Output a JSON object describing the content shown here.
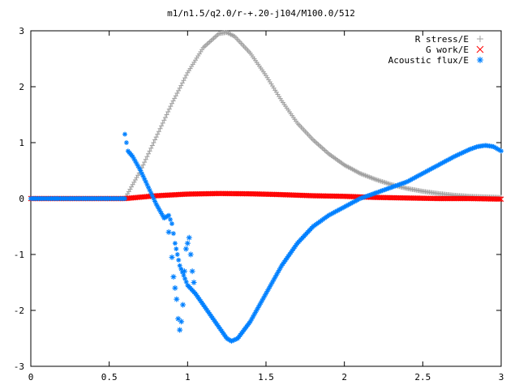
{
  "chart_data": {
    "type": "scatter",
    "title": "m1/n1.5/q2.0/r-+.20-j104/M100.0/512",
    "xlabel": "",
    "ylabel": "",
    "xlim": [
      0,
      3
    ],
    "ylim": [
      -3,
      3
    ],
    "xticks": [
      "0",
      "0.5",
      "1",
      "1.5",
      "2",
      "2.5",
      "3"
    ],
    "yticks": [
      "-3",
      "-2",
      "-1",
      "0",
      "1",
      "2",
      "3"
    ],
    "grid": false,
    "legend": "top-right",
    "series": [
      {
        "name": "R stress/E",
        "marker": "plus",
        "color": "#a0a0a0",
        "x": [
          0.6,
          0.7,
          0.8,
          0.9,
          1.0,
          1.1,
          1.2,
          1.25,
          1.3,
          1.4,
          1.5,
          1.6,
          1.7,
          1.8,
          1.9,
          2.0,
          2.1,
          2.2,
          2.3,
          2.4,
          2.5,
          2.6,
          2.7,
          2.8,
          2.9,
          3.0
        ],
        "y": [
          0.0,
          0.5,
          1.1,
          1.7,
          2.25,
          2.7,
          2.95,
          2.97,
          2.9,
          2.6,
          2.2,
          1.75,
          1.35,
          1.05,
          0.8,
          0.6,
          0.45,
          0.34,
          0.25,
          0.18,
          0.13,
          0.09,
          0.06,
          0.04,
          0.03,
          0.02
        ]
      },
      {
        "name": "G work/E",
        "marker": "cross",
        "color": "#ff0000",
        "x": [
          0.0,
          0.6,
          0.8,
          1.0,
          1.2,
          1.4,
          1.6,
          1.8,
          2.0,
          2.2,
          2.4,
          2.6,
          2.8,
          3.0
        ],
        "y": [
          0.0,
          0.0,
          0.05,
          0.08,
          0.09,
          0.085,
          0.07,
          0.05,
          0.04,
          0.02,
          0.01,
          0.0,
          0.0,
          -0.01
        ]
      },
      {
        "name": "Acoustic flux/E",
        "marker": "star",
        "color": "#0080ff",
        "x": [
          0.0,
          0.6,
          0.6,
          0.62,
          0.65,
          0.7,
          0.75,
          0.8,
          0.85,
          0.88,
          0.9,
          0.92,
          0.95,
          1.0,
          1.05,
          1.1,
          1.15,
          1.2,
          1.25,
          1.28,
          1.32,
          1.4,
          1.5,
          1.6,
          1.7,
          1.8,
          1.9,
          2.0,
          2.1,
          2.2,
          2.3,
          2.4,
          2.5,
          2.6,
          2.7,
          2.8,
          2.85,
          2.9,
          2.95,
          3.0,
          0.88,
          0.9,
          0.91,
          0.92,
          0.93,
          0.94,
          0.95,
          0.96,
          0.97,
          0.98,
          0.99,
          1.0,
          1.01,
          1.02,
          1.03,
          1.04
        ],
        "y": [
          0.0,
          0.0,
          1.15,
          0.85,
          0.75,
          0.5,
          0.2,
          -0.1,
          -0.35,
          -0.3,
          -0.45,
          -0.8,
          -1.2,
          -1.55,
          -1.7,
          -1.9,
          -2.1,
          -2.3,
          -2.5,
          -2.55,
          -2.5,
          -2.2,
          -1.7,
          -1.2,
          -0.8,
          -0.5,
          -0.3,
          -0.15,
          0.0,
          0.1,
          0.2,
          0.3,
          0.45,
          0.6,
          0.75,
          0.88,
          0.93,
          0.95,
          0.93,
          0.85,
          -0.6,
          -1.05,
          -1.4,
          -1.6,
          -1.8,
          -2.15,
          -2.35,
          -2.2,
          -1.9,
          -1.3,
          -0.9,
          -0.8,
          -0.7,
          -1.0,
          -1.3,
          -1.5
        ]
      }
    ]
  }
}
